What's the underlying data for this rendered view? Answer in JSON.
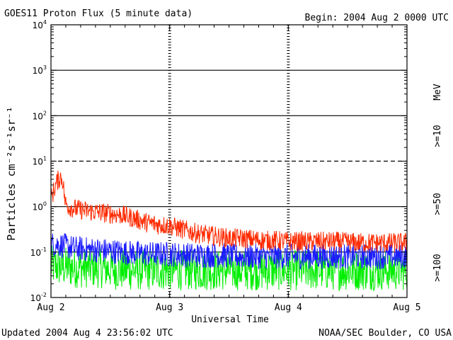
{
  "header": {
    "title": "GOES11 Proton Flux (5 minute data)",
    "begin": "Begin: 2004 Aug 2 0000 UTC"
  },
  "footer": {
    "updated": "Updated 2004 Aug  4 23:56:02 UTC",
    "credit": "NOAA/SEC Boulder, CO USA"
  },
  "chart_data": {
    "type": "line",
    "title": "GOES11 Proton Flux (5 minute data)",
    "xlabel": "Universal Time",
    "ylabel": "Particles cm⁻²s⁻¹sr⁻¹",
    "yscale": "log",
    "ylim": [
      0.01,
      10000
    ],
    "xlim": [
      0,
      3
    ],
    "x_ticks": [
      {
        "value": 0,
        "label": "Aug 2"
      },
      {
        "value": 1,
        "label": "Aug 3"
      },
      {
        "value": 2,
        "label": "Aug 4"
      },
      {
        "value": 3,
        "label": "Aug 5"
      }
    ],
    "y_ticks": [
      {
        "value": 0.01,
        "base": "10",
        "exp": "-2"
      },
      {
        "value": 0.1,
        "base": "10",
        "exp": "-1"
      },
      {
        "value": 1,
        "base": "10",
        "exp": "0"
      },
      {
        "value": 10,
        "base": "10",
        "exp": "1"
      },
      {
        "value": 100,
        "base": "10",
        "exp": "2"
      },
      {
        "value": 1000,
        "base": "10",
        "exp": "3"
      },
      {
        "value": 10000,
        "base": "10",
        "exp": "4"
      }
    ],
    "threshold_lines": [
      {
        "value": 0.1,
        "style": "solid"
      },
      {
        "value": 1,
        "style": "solid"
      },
      {
        "value": 10,
        "style": "dashed"
      },
      {
        "value": 100,
        "style": "solid"
      },
      {
        "value": 1000,
        "style": "solid"
      }
    ],
    "energy_unit_label": "MeV",
    "series": [
      {
        "name": ">=10",
        "color": "#ff2a00",
        "x": [
          0,
          0.05,
          0.08,
          0.1,
          0.12,
          0.15,
          0.2,
          0.3,
          0.4,
          0.5,
          0.6,
          0.7,
          0.8,
          0.9,
          1.0,
          1.1,
          1.2,
          1.3,
          1.4,
          1.5,
          1.6,
          1.7,
          1.8,
          1.9,
          2.0,
          2.2,
          2.4,
          2.6,
          2.8,
          3.0
        ],
        "values": [
          1.5,
          3.5,
          4.5,
          3.8,
          1.2,
          1.0,
          0.9,
          0.8,
          0.75,
          0.7,
          0.65,
          0.55,
          0.45,
          0.4,
          0.38,
          0.32,
          0.27,
          0.24,
          0.22,
          0.2,
          0.2,
          0.19,
          0.18,
          0.18,
          0.17,
          0.17,
          0.17,
          0.16,
          0.16,
          0.16
        ]
      },
      {
        "name": ">=50",
        "color": "#1a1aff",
        "x": [
          0,
          0.1,
          0.2,
          0.4,
          0.6,
          0.8,
          1.0,
          1.2,
          1.4,
          1.6,
          1.8,
          2.0,
          2.2,
          2.4,
          2.6,
          2.8,
          3.0
        ],
        "values": [
          0.15,
          0.14,
          0.12,
          0.11,
          0.1,
          0.09,
          0.09,
          0.085,
          0.085,
          0.08,
          0.08,
          0.08,
          0.08,
          0.08,
          0.08,
          0.08,
          0.08
        ]
      },
      {
        "name": ">=100",
        "color": "#00ee00",
        "x": [
          0,
          0.2,
          0.4,
          0.6,
          0.8,
          1.0,
          1.2,
          1.4,
          1.6,
          1.8,
          2.0,
          2.2,
          2.4,
          2.6,
          2.8,
          3.0
        ],
        "values": [
          0.05,
          0.045,
          0.045,
          0.04,
          0.04,
          0.04,
          0.04,
          0.04,
          0.04,
          0.04,
          0.04,
          0.04,
          0.04,
          0.04,
          0.04,
          0.04
        ]
      }
    ]
  }
}
